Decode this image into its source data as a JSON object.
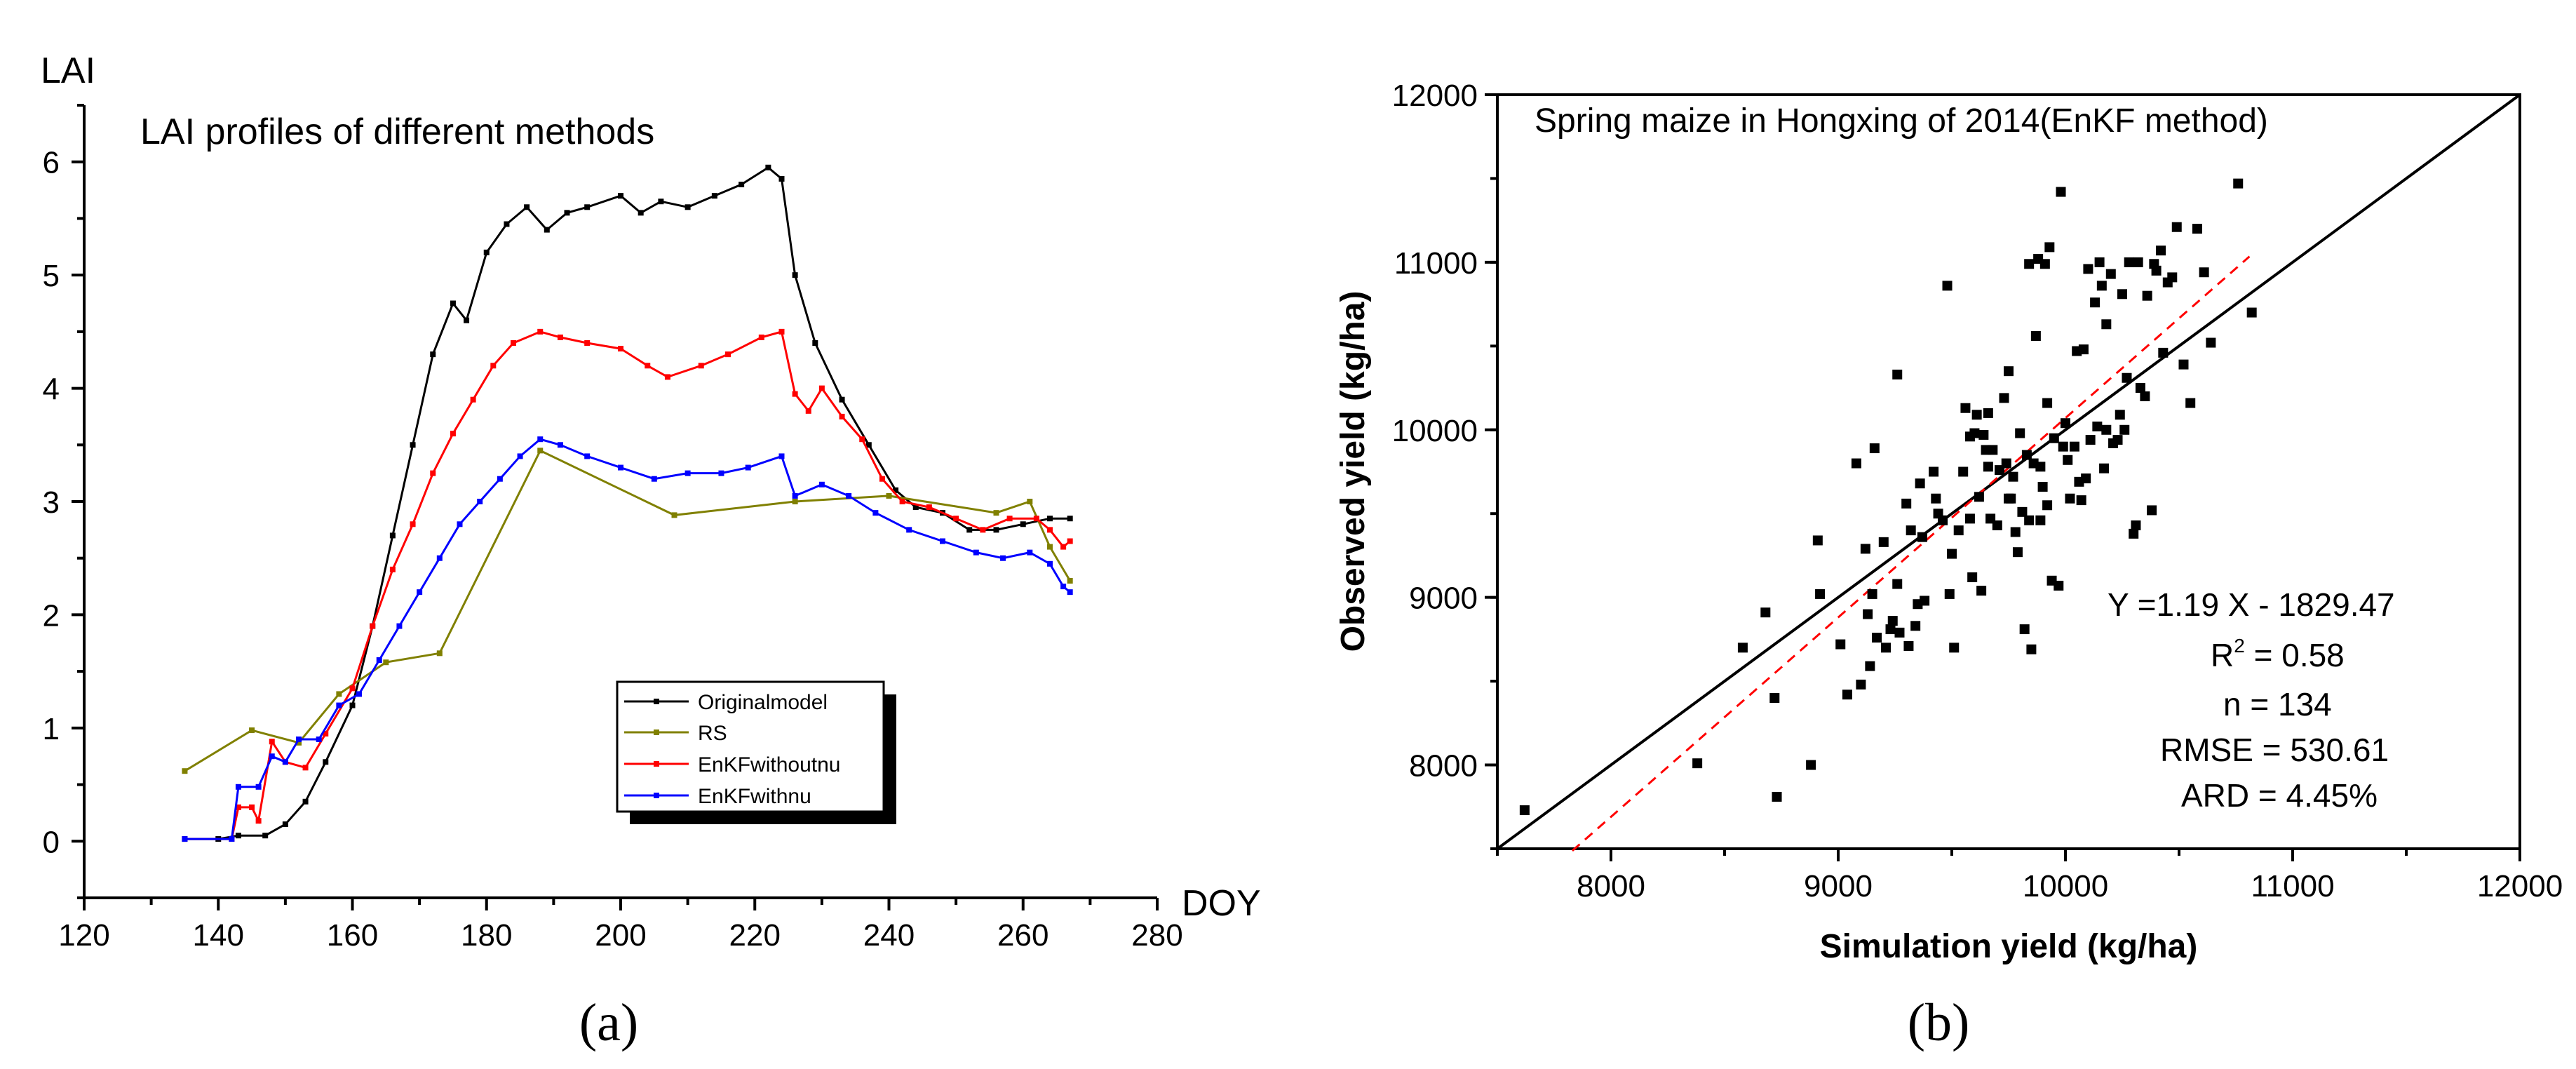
{
  "chart_data": [
    {
      "panel": "(a)",
      "type": "line",
      "title": "LAI  profiles of different methods",
      "xlabel": "DOY",
      "ylabel": "LAI",
      "xlim": [
        120,
        280
      ],
      "ylim": [
        -0.5,
        6.5
      ],
      "xticks": [
        "120",
        "140",
        "160",
        "180",
        "200",
        "220",
        "240",
        "260",
        "280"
      ],
      "yticks": [
        "0",
        "1",
        "2",
        "3",
        "4",
        "5",
        "6"
      ],
      "series": [
        {
          "name": "Originalmodel",
          "color": "#000000",
          "points": [
            [
              135,
              0.02
            ],
            [
              140,
              0.02
            ],
            [
              143,
              0.05
            ],
            [
              147,
              0.05
            ],
            [
              150,
              0.15
            ],
            [
              153,
              0.35
            ],
            [
              156,
              0.7
            ],
            [
              160,
              1.2
            ],
            [
              163,
              1.9
            ],
            [
              166,
              2.7
            ],
            [
              169,
              3.5
            ],
            [
              172,
              4.3
            ],
            [
              175,
              4.75
            ],
            [
              177,
              4.6
            ],
            [
              180,
              5.2
            ],
            [
              183,
              5.45
            ],
            [
              186,
              5.6
            ],
            [
              189,
              5.4
            ],
            [
              192,
              5.55
            ],
            [
              195,
              5.6
            ],
            [
              200,
              5.7
            ],
            [
              203,
              5.55
            ],
            [
              206,
              5.65
            ],
            [
              210,
              5.6
            ],
            [
              214,
              5.7
            ],
            [
              218,
              5.8
            ],
            [
              222,
              5.95
            ],
            [
              224,
              5.85
            ],
            [
              226,
              5.0
            ],
            [
              229,
              4.4
            ],
            [
              233,
              3.9
            ],
            [
              237,
              3.5
            ],
            [
              241,
              3.1
            ],
            [
              244,
              2.95
            ],
            [
              248,
              2.9
            ],
            [
              252,
              2.75
            ],
            [
              256,
              2.75
            ],
            [
              260,
              2.8
            ],
            [
              264,
              2.85
            ],
            [
              267,
              2.85
            ]
          ]
        },
        {
          "name": "RS",
          "color": "#808000",
          "points": [
            [
              135,
              0.62
            ],
            [
              145,
              0.98
            ],
            [
              152,
              0.87
            ],
            [
              158,
              1.3
            ],
            [
              165,
              1.58
            ],
            [
              173,
              1.66
            ],
            [
              188,
              3.45
            ],
            [
              208,
              2.88
            ],
            [
              226,
              3.0
            ],
            [
              240,
              3.05
            ],
            [
              256,
              2.9
            ],
            [
              261,
              3.0
            ],
            [
              264,
              2.6
            ],
            [
              267,
              2.3
            ]
          ]
        },
        {
          "name": "EnKFwithoutnu",
          "color": "#ff0000",
          "points": [
            [
              135,
              0.02
            ],
            [
              142,
              0.02
            ],
            [
              143,
              0.3
            ],
            [
              145,
              0.3
            ],
            [
              146,
              0.18
            ],
            [
              148,
              0.88
            ],
            [
              150,
              0.7
            ],
            [
              153,
              0.65
            ],
            [
              156,
              0.95
            ],
            [
              160,
              1.35
            ],
            [
              163,
              1.9
            ],
            [
              166,
              2.4
            ],
            [
              169,
              2.8
            ],
            [
              172,
              3.25
            ],
            [
              175,
              3.6
            ],
            [
              178,
              3.9
            ],
            [
              181,
              4.2
            ],
            [
              184,
              4.4
            ],
            [
              188,
              4.5
            ],
            [
              191,
              4.45
            ],
            [
              195,
              4.4
            ],
            [
              200,
              4.35
            ],
            [
              204,
              4.2
            ],
            [
              207,
              4.1
            ],
            [
              212,
              4.2
            ],
            [
              216,
              4.3
            ],
            [
              221,
              4.45
            ],
            [
              224,
              4.5
            ],
            [
              226,
              3.95
            ],
            [
              228,
              3.8
            ],
            [
              230,
              4.0
            ],
            [
              233,
              3.75
            ],
            [
              236,
              3.55
            ],
            [
              239,
              3.2
            ],
            [
              242,
              3.0
            ],
            [
              246,
              2.95
            ],
            [
              250,
              2.85
            ],
            [
              254,
              2.75
            ],
            [
              258,
              2.85
            ],
            [
              262,
              2.85
            ],
            [
              264,
              2.75
            ],
            [
              266,
              2.6
            ],
            [
              267,
              2.65
            ]
          ]
        },
        {
          "name": "EnKFwithnu",
          "color": "#0000ff",
          "points": [
            [
              135,
              0.02
            ],
            [
              142,
              0.02
            ],
            [
              143,
              0.48
            ],
            [
              146,
              0.48
            ],
            [
              148,
              0.75
            ],
            [
              150,
              0.7
            ],
            [
              152,
              0.9
            ],
            [
              155,
              0.9
            ],
            [
              158,
              1.2
            ],
            [
              161,
              1.3
            ],
            [
              164,
              1.6
            ],
            [
              167,
              1.9
            ],
            [
              170,
              2.2
            ],
            [
              173,
              2.5
            ],
            [
              176,
              2.8
            ],
            [
              179,
              3.0
            ],
            [
              182,
              3.2
            ],
            [
              185,
              3.4
            ],
            [
              188,
              3.55
            ],
            [
              191,
              3.5
            ],
            [
              195,
              3.4
            ],
            [
              200,
              3.3
            ],
            [
              205,
              3.2
            ],
            [
              210,
              3.25
            ],
            [
              215,
              3.25
            ],
            [
              219,
              3.3
            ],
            [
              224,
              3.4
            ],
            [
              226,
              3.05
            ],
            [
              230,
              3.15
            ],
            [
              234,
              3.05
            ],
            [
              238,
              2.9
            ],
            [
              243,
              2.75
            ],
            [
              248,
              2.65
            ],
            [
              253,
              2.55
            ],
            [
              257,
              2.5
            ],
            [
              261,
              2.55
            ],
            [
              264,
              2.45
            ],
            [
              266,
              2.25
            ],
            [
              267,
              2.2
            ]
          ]
        }
      ],
      "legend_position": "lower-right",
      "caption": "(a)"
    },
    {
      "panel": "(b)",
      "type": "scatter",
      "title": "Spring maize in Hongxing of 2014(EnKF method)",
      "xlabel": "Simulation yield (kg/ha)",
      "ylabel": "Observed yield (kg/ha)",
      "xlim": [
        7500,
        12000
      ],
      "ylim": [
        7500,
        12000
      ],
      "xticks": [
        "8000",
        "9000",
        "10000",
        "11000",
        "12000"
      ],
      "yticks": [
        "8000",
        "9000",
        "10000",
        "11000",
        "12000"
      ],
      "fit_line": {
        "slope": 1.19,
        "intercept": -1829.47,
        "x_range": [
          7830,
          10810
        ],
        "color": "#ff0000",
        "style": "dashed"
      },
      "one_to_one_line": {
        "color": "#000000"
      },
      "annotations": {
        "equation": "Y =1.19 X - 1829.47",
        "r2_label": "R",
        "r2_sup": "2",
        "r2_value": " =  0.58",
        "n": "n = 134",
        "rmse": "RMSE = 530.61",
        "ard": "ARD = 4.45%"
      },
      "points": [
        [
          7620,
          7730
        ],
        [
          8380,
          8010
        ],
        [
          8580,
          8700
        ],
        [
          8680,
          8910
        ],
        [
          8720,
          8400
        ],
        [
          8730,
          7810
        ],
        [
          8880,
          8000
        ],
        [
          8910,
          9340
        ],
        [
          8920,
          9020
        ],
        [
          9010,
          8720
        ],
        [
          9040,
          8420
        ],
        [
          9080,
          9800
        ],
        [
          9100,
          8480
        ],
        [
          9120,
          9290
        ],
        [
          9130,
          8900
        ],
        [
          9140,
          8590
        ],
        [
          9150,
          9020
        ],
        [
          9160,
          9890
        ],
        [
          9170,
          8760
        ],
        [
          9200,
          9330
        ],
        [
          9210,
          8700
        ],
        [
          9230,
          8810
        ],
        [
          9240,
          8860
        ],
        [
          9260,
          9080
        ],
        [
          9260,
          10330
        ],
        [
          9270,
          8790
        ],
        [
          9300,
          9560
        ],
        [
          9310,
          8710
        ],
        [
          9320,
          9400
        ],
        [
          9340,
          8830
        ],
        [
          9350,
          8960
        ],
        [
          9360,
          9680
        ],
        [
          9370,
          9360
        ],
        [
          9380,
          8980
        ],
        [
          9420,
          9750
        ],
        [
          9430,
          9590
        ],
        [
          9440,
          9500
        ],
        [
          9460,
          9460
        ],
        [
          9480,
          10860
        ],
        [
          9490,
          9020
        ],
        [
          9500,
          9260
        ],
        [
          9510,
          8700
        ],
        [
          9530,
          9400
        ],
        [
          9550,
          9750
        ],
        [
          9560,
          10130
        ],
        [
          9580,
          9960
        ],
        [
          9590,
          9120
        ],
        [
          9600,
          9980
        ],
        [
          9610,
          10090
        ],
        [
          9620,
          9600
        ],
        [
          9630,
          9040
        ],
        [
          9640,
          9970
        ],
        [
          9650,
          9880
        ],
        [
          9660,
          9780
        ],
        [
          9670,
          9470
        ],
        [
          9680,
          9880
        ],
        [
          9700,
          9430
        ],
        [
          9710,
          9760
        ],
        [
          9730,
          10190
        ],
        [
          9740,
          9800
        ],
        [
          9750,
          10350
        ],
        [
          9760,
          9590
        ],
        [
          9770,
          9720
        ],
        [
          9780,
          9390
        ],
        [
          9790,
          9270
        ],
        [
          9800,
          9980
        ],
        [
          9810,
          9510
        ],
        [
          9820,
          8810
        ],
        [
          9830,
          9850
        ],
        [
          9840,
          10990
        ],
        [
          9840,
          9460
        ],
        [
          9850,
          8690
        ],
        [
          9860,
          9800
        ],
        [
          9870,
          10560
        ],
        [
          9880,
          11020
        ],
        [
          9890,
          9460
        ],
        [
          9900,
          9660
        ],
        [
          9910,
          10990
        ],
        [
          9920,
          9550
        ],
        [
          9930,
          11090
        ],
        [
          9940,
          9100
        ],
        [
          9950,
          9950
        ],
        [
          9970,
          9070
        ],
        [
          9980,
          11420
        ],
        [
          9990,
          9900
        ],
        [
          10010,
          9820
        ],
        [
          10020,
          9590
        ],
        [
          10040,
          9900
        ],
        [
          10050,
          10470
        ],
        [
          10060,
          9690
        ],
        [
          10080,
          10480
        ],
        [
          10090,
          9710
        ],
        [
          10100,
          10960
        ],
        [
          10110,
          9940
        ],
        [
          10130,
          10760
        ],
        [
          10140,
          10020
        ],
        [
          10150,
          11000
        ],
        [
          10160,
          10860
        ],
        [
          10170,
          9770
        ],
        [
          10180,
          10630
        ],
        [
          10200,
          10930
        ],
        [
          10210,
          9920
        ],
        [
          10230,
          9940
        ],
        [
          10240,
          10090
        ],
        [
          10250,
          10810
        ],
        [
          10260,
          10000
        ],
        [
          10270,
          10310
        ],
        [
          10280,
          11000
        ],
        [
          10300,
          9380
        ],
        [
          10310,
          9430
        ],
        [
          10320,
          11000
        ],
        [
          10330,
          10250
        ],
        [
          10350,
          10200
        ],
        [
          10360,
          10800
        ],
        [
          10380,
          9520
        ],
        [
          10390,
          10990
        ],
        [
          10400,
          10950
        ],
        [
          10420,
          11070
        ],
        [
          10430,
          10460
        ],
        [
          10450,
          10880
        ],
        [
          10470,
          10910
        ],
        [
          10490,
          11210
        ],
        [
          10520,
          10390
        ],
        [
          10550,
          10160
        ],
        [
          10580,
          11200
        ],
        [
          10610,
          10940
        ],
        [
          10640,
          10520
        ],
        [
          10760,
          11470
        ],
        [
          10820,
          10700
        ],
        [
          9750,
          9590
        ],
        [
          9890,
          9780
        ],
        [
          10000,
          10040
        ],
        [
          9660,
          10100
        ],
        [
          9920,
          10160
        ],
        [
          10070,
          9580
        ],
        [
          9580,
          9470
        ],
        [
          10180,
          10000
        ]
      ],
      "caption": "(b)"
    }
  ]
}
